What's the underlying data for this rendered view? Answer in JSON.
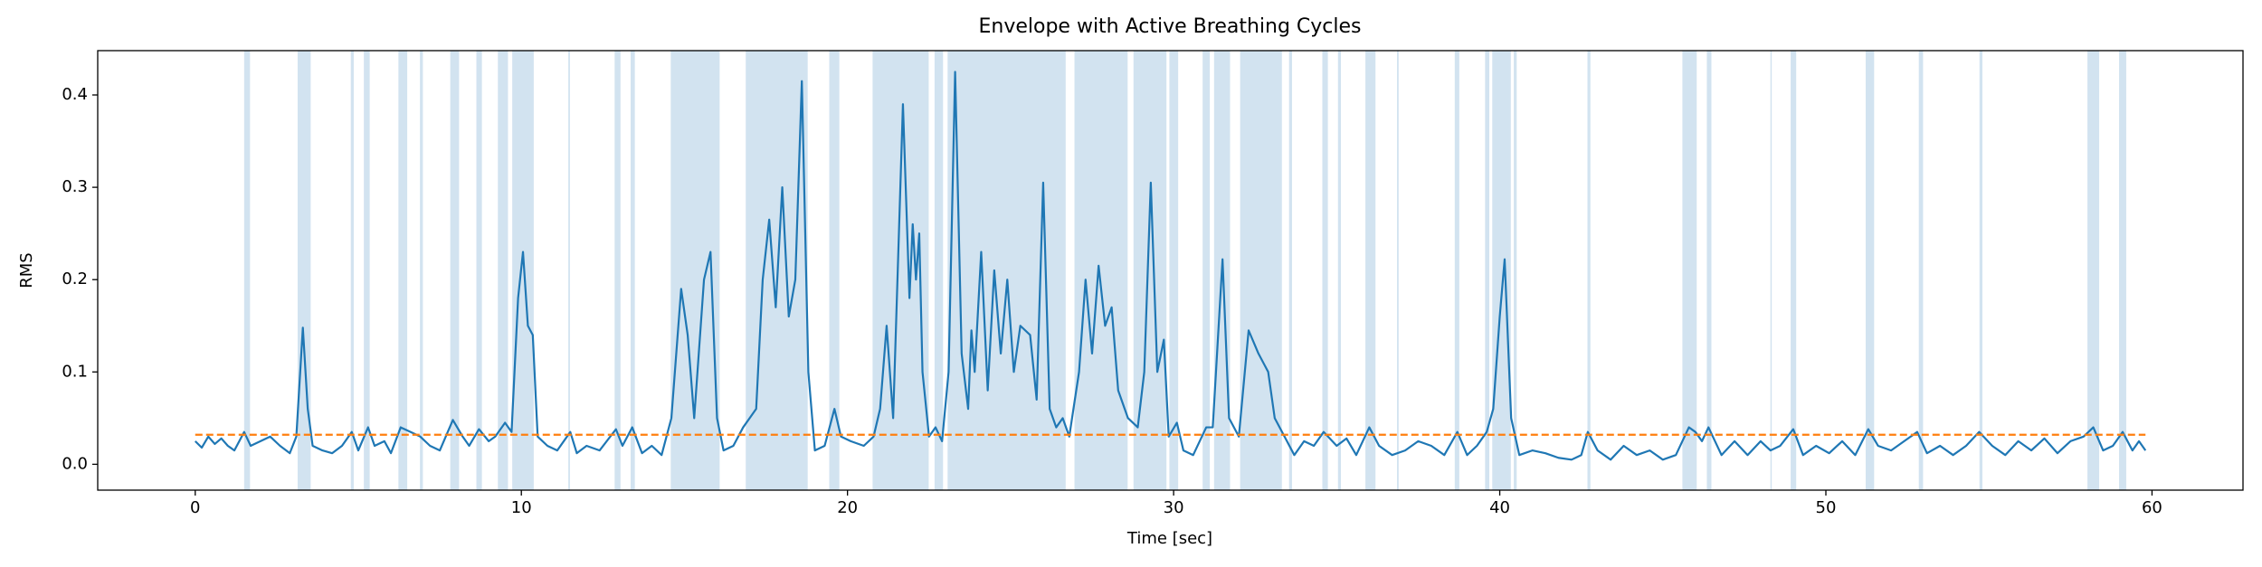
{
  "chart_data": {
    "type": "line",
    "title": "Envelope with Active Breathing Cycles",
    "xlabel": "Time [sec]",
    "ylabel": "RMS",
    "xlim": [
      -2.99,
      62.79
    ],
    "ylim": [
      -0.028,
      0.448
    ],
    "xticks": [
      0,
      10,
      20,
      30,
      40,
      50,
      60
    ],
    "yticks": [
      {
        "value": 0,
        "label": "0.0"
      },
      0.1,
      0.2,
      0.3,
      0.4
    ],
    "span_color": "#d2e3f0",
    "spans": [
      [
        1.5,
        1.68
      ],
      [
        3.14,
        3.54
      ],
      [
        4.77,
        4.86
      ],
      [
        5.17,
        5.35
      ],
      [
        6.23,
        6.5
      ],
      [
        6.89,
        6.98
      ],
      [
        7.82,
        8.09
      ],
      [
        8.62,
        8.79
      ],
      [
        9.28,
        9.59
      ],
      [
        9.72,
        10.38
      ],
      [
        11.44,
        11.49
      ],
      [
        12.86,
        13.04
      ],
      [
        13.35,
        13.48
      ],
      [
        14.58,
        16.08
      ],
      [
        16.88,
        18.78
      ],
      [
        19.44,
        19.75
      ],
      [
        20.77,
        22.49
      ],
      [
        22.67,
        22.93
      ],
      [
        23.07,
        26.69
      ],
      [
        26.96,
        28.59
      ],
      [
        28.77,
        29.78
      ],
      [
        29.87,
        30.14
      ],
      [
        30.89,
        31.11
      ],
      [
        31.24,
        31.73
      ],
      [
        32.04,
        33.32
      ],
      [
        33.54,
        33.63
      ],
      [
        34.56,
        34.73
      ],
      [
        35.04,
        35.13
      ],
      [
        35.88,
        36.19
      ],
      [
        36.85,
        36.9
      ],
      [
        38.62,
        38.76
      ],
      [
        39.55,
        39.68
      ],
      [
        39.77,
        40.34
      ],
      [
        40.43,
        40.52
      ],
      [
        42.69,
        42.78
      ],
      [
        45.6,
        46.04
      ],
      [
        46.35,
        46.49
      ],
      [
        48.3,
        48.34
      ],
      [
        48.92,
        49.09
      ],
      [
        51.22,
        51.48
      ],
      [
        52.85,
        52.98
      ],
      [
        54.71,
        54.8
      ],
      [
        58.02,
        58.38
      ],
      [
        58.99,
        59.21
      ]
    ],
    "series": [
      {
        "color": "#1f77b4",
        "x": [
          0,
          0.2,
          0.4,
          0.6,
          0.8,
          1.0,
          1.2,
          1.5,
          1.7,
          2.0,
          2.3,
          2.6,
          2.9,
          3.1,
          3.3,
          3.45,
          3.6,
          3.9,
          4.2,
          4.5,
          4.8,
          5.0,
          5.3,
          5.5,
          5.8,
          6.0,
          6.3,
          6.6,
          6.9,
          7.2,
          7.5,
          7.9,
          8.2,
          8.4,
          8.7,
          9.0,
          9.2,
          9.5,
          9.7,
          9.9,
          10.05,
          10.2,
          10.35,
          10.5,
          10.8,
          11.1,
          11.5,
          11.7,
          12.0,
          12.4,
          12.9,
          13.1,
          13.4,
          13.7,
          14.0,
          14.3,
          14.6,
          14.9,
          15.1,
          15.3,
          15.6,
          15.8,
          16.0,
          16.2,
          16.5,
          16.8,
          17.0,
          17.2,
          17.4,
          17.6,
          17.8,
          18.0,
          18.2,
          18.4,
          18.6,
          18.8,
          19.0,
          19.3,
          19.6,
          19.8,
          20.1,
          20.5,
          20.8,
          21.0,
          21.2,
          21.4,
          21.7,
          21.9,
          22.0,
          22.1,
          22.2,
          22.3,
          22.5,
          22.7,
          22.9,
          23.1,
          23.3,
          23.5,
          23.7,
          23.8,
          23.9,
          24.1,
          24.3,
          24.5,
          24.7,
          24.9,
          25.1,
          25.3,
          25.6,
          25.8,
          26.0,
          26.2,
          26.4,
          26.6,
          26.8,
          27.1,
          27.3,
          27.5,
          27.7,
          27.9,
          28.1,
          28.3,
          28.6,
          28.9,
          29.1,
          29.3,
          29.5,
          29.7,
          29.85,
          30.1,
          30.3,
          30.6,
          31.0,
          31.2,
          31.5,
          31.7,
          32.0,
          32.3,
          32.6,
          32.9,
          33.1,
          33.4,
          33.7,
          34.0,
          34.3,
          34.6,
          35.0,
          35.3,
          35.6,
          36.0,
          36.3,
          36.7,
          37.1,
          37.5,
          37.9,
          38.3,
          38.7,
          39.0,
          39.3,
          39.6,
          39.8,
          40.0,
          40.15,
          40.35,
          40.6,
          41.0,
          41.4,
          41.8,
          42.2,
          42.5,
          42.7,
          43.0,
          43.4,
          43.8,
          44.2,
          44.6,
          45.0,
          45.4,
          45.8,
          46.0,
          46.2,
          46.4,
          46.8,
          47.2,
          47.6,
          48.0,
          48.3,
          48.6,
          49.0,
          49.3,
          49.7,
          50.1,
          50.5,
          50.9,
          51.3,
          51.6,
          52.0,
          52.4,
          52.8,
          53.1,
          53.5,
          53.9,
          54.3,
          54.7,
          55.1,
          55.5,
          55.9,
          56.3,
          56.7,
          57.1,
          57.5,
          57.9,
          58.2,
          58.5,
          58.8,
          59.1,
          59.4,
          59.6,
          59.8
        ],
        "values": [
          0.025,
          0.018,
          0.03,
          0.022,
          0.028,
          0.02,
          0.015,
          0.035,
          0.02,
          0.025,
          0.03,
          0.02,
          0.012,
          0.03,
          0.148,
          0.06,
          0.02,
          0.015,
          0.012,
          0.02,
          0.035,
          0.015,
          0.04,
          0.02,
          0.025,
          0.012,
          0.04,
          0.035,
          0.03,
          0.02,
          0.015,
          0.048,
          0.03,
          0.02,
          0.038,
          0.025,
          0.03,
          0.045,
          0.035,
          0.18,
          0.23,
          0.15,
          0.14,
          0.03,
          0.02,
          0.015,
          0.035,
          0.012,
          0.02,
          0.015,
          0.038,
          0.02,
          0.04,
          0.012,
          0.02,
          0.01,
          0.05,
          0.19,
          0.14,
          0.05,
          0.2,
          0.23,
          0.05,
          0.015,
          0.02,
          0.04,
          0.05,
          0.06,
          0.2,
          0.265,
          0.17,
          0.3,
          0.16,
          0.2,
          0.415,
          0.1,
          0.015,
          0.02,
          0.06,
          0.03,
          0.025,
          0.02,
          0.03,
          0.06,
          0.15,
          0.05,
          0.39,
          0.18,
          0.26,
          0.2,
          0.25,
          0.1,
          0.03,
          0.04,
          0.025,
          0.1,
          0.425,
          0.12,
          0.06,
          0.145,
          0.1,
          0.23,
          0.08,
          0.21,
          0.12,
          0.2,
          0.1,
          0.15,
          0.14,
          0.07,
          0.305,
          0.06,
          0.04,
          0.05,
          0.03,
          0.1,
          0.2,
          0.12,
          0.215,
          0.15,
          0.17,
          0.08,
          0.05,
          0.04,
          0.1,
          0.305,
          0.1,
          0.135,
          0.03,
          0.045,
          0.015,
          0.01,
          0.04,
          0.04,
          0.222,
          0.05,
          0.03,
          0.145,
          0.12,
          0.1,
          0.05,
          0.03,
          0.01,
          0.025,
          0.02,
          0.035,
          0.02,
          0.028,
          0.01,
          0.04,
          0.02,
          0.01,
          0.015,
          0.025,
          0.02,
          0.01,
          0.035,
          0.01,
          0.02,
          0.035,
          0.06,
          0.16,
          0.222,
          0.05,
          0.01,
          0.015,
          0.012,
          0.007,
          0.005,
          0.01,
          0.035,
          0.015,
          0.005,
          0.02,
          0.01,
          0.015,
          0.005,
          0.01,
          0.04,
          0.035,
          0.025,
          0.04,
          0.01,
          0.025,
          0.01,
          0.025,
          0.015,
          0.02,
          0.038,
          0.01,
          0.02,
          0.012,
          0.025,
          0.01,
          0.038,
          0.02,
          0.015,
          0.025,
          0.035,
          0.012,
          0.02,
          0.01,
          0.02,
          0.035,
          0.02,
          0.01,
          0.025,
          0.015,
          0.028,
          0.012,
          0.025,
          0.03,
          0.04,
          0.015,
          0.02,
          0.035,
          0.015,
          0.025,
          0.015
        ]
      },
      {
        "color": "#ff7f0e",
        "dashed": true,
        "x": [
          0,
          59.8
        ],
        "values": [
          0.032,
          0.032
        ]
      }
    ]
  }
}
